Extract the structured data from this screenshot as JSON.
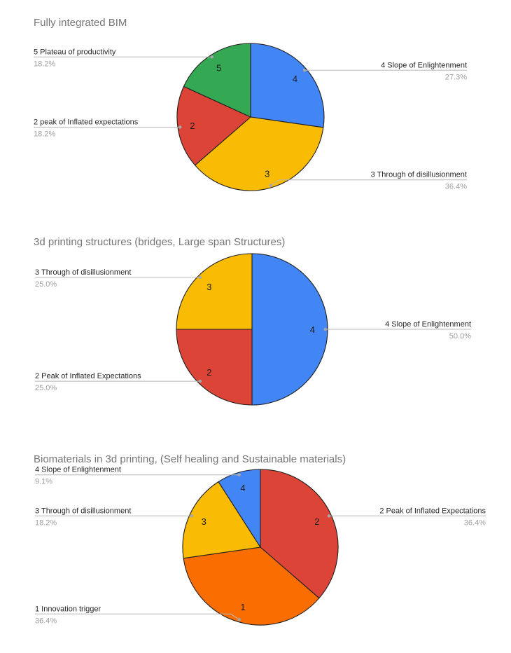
{
  "style": {
    "background": "#ffffff",
    "title_color": "#757575",
    "label_color": "#272727",
    "pct_color": "#9e9e9e",
    "number_color": "#1d1d1d",
    "slice_border": "#1f1f1f",
    "leader_line": "#b7b7b7",
    "dot_color": "#a8a8a8"
  },
  "chart_data": [
    {
      "type": "pie",
      "title": "Fully integrated BIM",
      "legend_position": "labeled-callouts",
      "slices": [
        {
          "num": "4",
          "label": "4 Slope of Enlightenment",
          "pct_label": "27.3%",
          "value": 27.3,
          "color": "#4285F4",
          "side": "right"
        },
        {
          "num": "3",
          "label": "3 Through of disillusionment",
          "pct_label": "36.4%",
          "value": 36.4,
          "color": "#F9BB04",
          "side": "right"
        },
        {
          "num": "2",
          "label": "2 peak of Inflated expectations",
          "pct_label": "18.2%",
          "value": 18.2,
          "color": "#DC4437",
          "side": "left"
        },
        {
          "num": "5",
          "label": "5 Plateau of productivity",
          "pct_label": "18.2%",
          "value": 18.2,
          "color": "#34A853",
          "side": "left"
        }
      ]
    },
    {
      "type": "pie",
      "title": "3d printing structures  (bridges, Large span Structures)",
      "legend_position": "labeled-callouts",
      "slices": [
        {
          "num": "4",
          "label": "4 Slope of Enlightenment",
          "pct_label": "50.0%",
          "value": 50.0,
          "color": "#4285F4",
          "side": "right"
        },
        {
          "num": "2",
          "label": "2 Peak of Inflated Expectations",
          "pct_label": "25.0%",
          "value": 25.0,
          "color": "#DC4437",
          "side": "left"
        },
        {
          "num": "3",
          "label": "3 Through of disillusionment",
          "pct_label": "25.0%",
          "value": 25.0,
          "color": "#F9BB04",
          "side": "left"
        }
      ]
    },
    {
      "type": "pie",
      "title": "Biomaterials in 3d printing, (Self healing and Sustainable materials)",
      "legend_position": "labeled-callouts",
      "slices": [
        {
          "num": "2",
          "label": "2 Peak of Inflated Expectations",
          "pct_label": "36.4%",
          "value": 36.4,
          "color": "#DC4437",
          "side": "right"
        },
        {
          "num": "1",
          "label": "1 Innovation trigger",
          "pct_label": "36.4%",
          "value": 36.4,
          "color": "#FA6D00",
          "side": "left"
        },
        {
          "num": "3",
          "label": "3 Through of disillusionment",
          "pct_label": "18.2%",
          "value": 18.2,
          "color": "#F9BB04",
          "side": "left"
        },
        {
          "num": "4",
          "label": "4 Slope of Enlightenment",
          "pct_label": "9.1%",
          "value": 9.1,
          "color": "#4285F4",
          "side": "left"
        }
      ]
    }
  ]
}
